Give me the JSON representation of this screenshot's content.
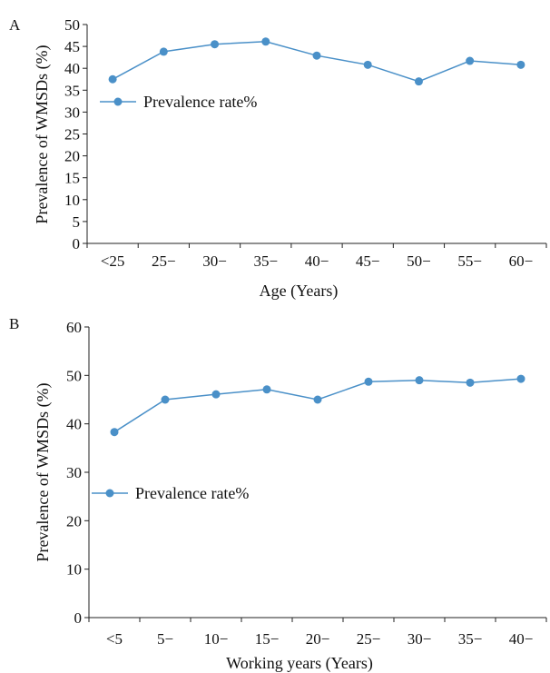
{
  "chart_data": [
    {
      "panel": "A",
      "type": "line",
      "categories": [
        "<25",
        "25−",
        "30−",
        "35−",
        "40−",
        "45−",
        "50−",
        "55−",
        "60−"
      ],
      "series": [
        {
          "name": "Prevalence rate%",
          "values": [
            37.5,
            43.8,
            45.5,
            46.1,
            42.9,
            40.8,
            37.0,
            41.7,
            40.8
          ]
        }
      ],
      "xlabel": "Age (Years)",
      "ylabel": "Prevalence of WMSDs (%)",
      "ylim": [
        0,
        50
      ],
      "yticks": [
        0,
        5,
        10,
        15,
        20,
        25,
        30,
        35,
        40,
        45,
        50
      ],
      "grid": false,
      "legend": "upper-left",
      "color": "#4a90c8"
    },
    {
      "panel": "B",
      "type": "line",
      "categories": [
        "<5",
        "5−",
        "10−",
        "15−",
        "20−",
        "25−",
        "30−",
        "35−",
        "40−"
      ],
      "series": [
        {
          "name": "Prevalence rate%",
          "values": [
            38.3,
            45.0,
            46.1,
            47.1,
            45.0,
            48.7,
            49.0,
            48.5,
            49.3
          ]
        }
      ],
      "xlabel": "Working years (Years)",
      "ylabel": "Prevalence of WMSDs (%)",
      "ylim": [
        0,
        60
      ],
      "yticks": [
        0,
        10,
        20,
        30,
        40,
        50,
        60
      ],
      "grid": false,
      "legend": "middle-left",
      "color": "#4a90c8"
    }
  ]
}
